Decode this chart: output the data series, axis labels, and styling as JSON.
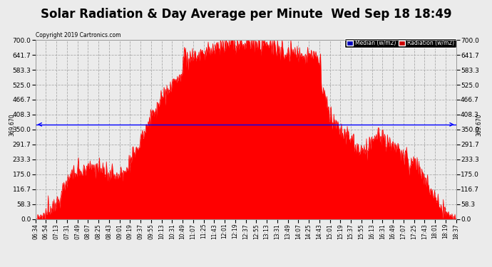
{
  "title": "Solar Radiation & Day Average per Minute  Wed Sep 18 18:49",
  "copyright": "Copyright 2019 Cartronics.com",
  "ylim": [
    0.0,
    700.0
  ],
  "yticks": [
    0.0,
    58.3,
    116.7,
    175.0,
    233.3,
    291.7,
    350.0,
    408.3,
    466.7,
    525.0,
    583.3,
    641.7,
    700.0
  ],
  "ytick_labels": [
    "0.0",
    "58.3",
    "116.7",
    "175.0",
    "233.3",
    "291.7",
    "350.0",
    "408.3",
    "466.7",
    "525.0",
    "583.3",
    "641.7",
    "700.0"
  ],
  "median_value": 369.67,
  "median_label": "369.670",
  "fill_color": "#FF0000",
  "median_line_color": "#0000FF",
  "background_color": "#EBEBEB",
  "grid_color": "#AAAAAA",
  "title_fontsize": 12,
  "legend_median_color": "#0000BB",
  "legend_radiation_color": "#CC0000",
  "xtick_labels": [
    "06:34",
    "06:54",
    "07:13",
    "07:31",
    "07:49",
    "08:07",
    "08:25",
    "08:43",
    "09:01",
    "09:19",
    "09:37",
    "09:55",
    "10:13",
    "10:31",
    "10:49",
    "11:07",
    "11:25",
    "11:43",
    "12:01",
    "12:19",
    "12:37",
    "12:55",
    "13:13",
    "13:31",
    "13:49",
    "14:07",
    "14:25",
    "14:43",
    "15:01",
    "15:19",
    "15:37",
    "15:55",
    "16:13",
    "16:31",
    "16:49",
    "17:07",
    "17:25",
    "17:43",
    "18:01",
    "18:19",
    "18:37"
  ],
  "num_points": 724
}
